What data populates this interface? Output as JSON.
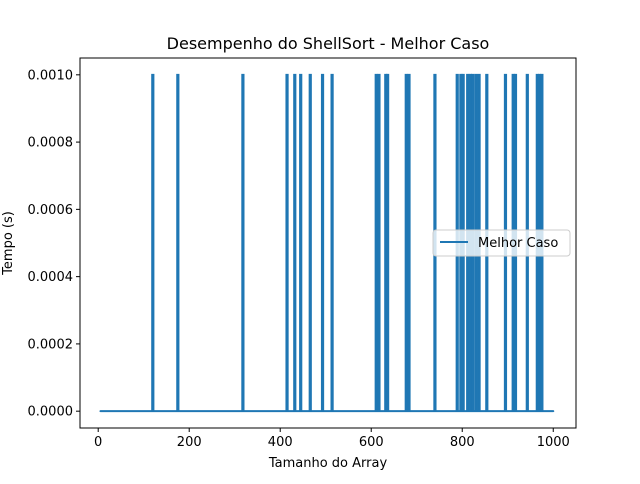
{
  "chart_data": {
    "type": "line",
    "title": "Desempenho do ShellSort - Melhor Caso",
    "xlabel": "Tamanho do Array",
    "ylabel": "Tempo (s)",
    "xlim": [
      -40,
      1050
    ],
    "ylim": [
      -5e-05,
      0.00105
    ],
    "xticks": [
      0,
      200,
      400,
      600,
      800,
      1000
    ],
    "xtick_labels": [
      "0",
      "200",
      "400",
      "600",
      "800",
      "1000"
    ],
    "yticks": [
      0,
      0.0002,
      0.0004,
      0.0006,
      0.0008,
      0.001
    ],
    "ytick_labels": [
      "0.0000",
      "0.0002",
      "0.0004",
      "0.0006",
      "0.0008",
      "0.0010"
    ],
    "grid": false,
    "legend": "center-right",
    "series": [
      {
        "name": "Melhor Caso",
        "color": "#1f77b4",
        "x_start": 5,
        "x_end": 1000,
        "baseline": 0,
        "spike_value": 0.001,
        "spike_x": [
          120,
          175,
          318,
          415,
          432,
          445,
          466,
          493,
          514,
          611,
          617,
          632,
          636,
          677,
          683,
          740,
          789,
          797,
          802,
          812,
          818,
          823,
          830,
          837,
          854,
          895,
          912,
          917,
          943,
          965,
          970,
          975
        ]
      }
    ]
  }
}
